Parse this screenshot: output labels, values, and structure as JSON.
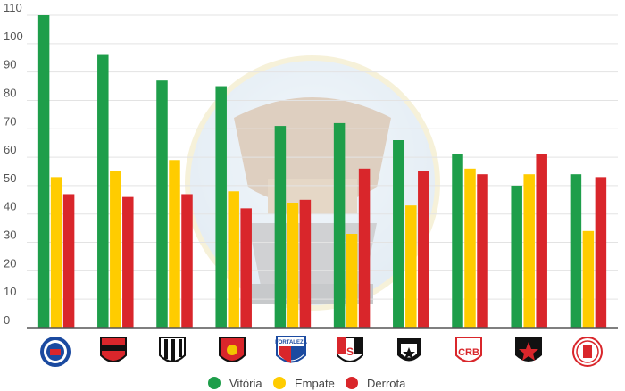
{
  "chart_data": {
    "type": "bar",
    "categories": [
      "Bahia",
      "Vitória",
      "Ceará",
      "Sport",
      "Fortaleza",
      "Santa Cruz",
      "ABC",
      "CRB",
      "Botafogo-PB",
      "América-RN"
    ],
    "series": [
      {
        "name": "Vitória",
        "color": "#1e9e4a",
        "values": [
          110,
          96,
          87,
          85,
          71,
          72,
          66,
          61,
          50,
          54
        ]
      },
      {
        "name": "Empate",
        "color": "#ffcc00",
        "values": [
          53,
          55,
          59,
          48,
          44,
          33,
          43,
          56,
          54,
          34
        ]
      },
      {
        "name": "Derrota",
        "color": "#d9262b",
        "values": [
          47,
          46,
          47,
          42,
          45,
          56,
          55,
          54,
          61,
          53
        ]
      }
    ],
    "yticks": [
      "0",
      "10",
      "20",
      "30",
      "40",
      "50",
      "60",
      "70",
      "80",
      "90",
      "100",
      "110"
    ],
    "ylim": [
      0,
      110
    ],
    "grid": true,
    "legend_position": "bottom-center",
    "logo_texts": [
      "FORTALEZA",
      "CRB"
    ]
  }
}
